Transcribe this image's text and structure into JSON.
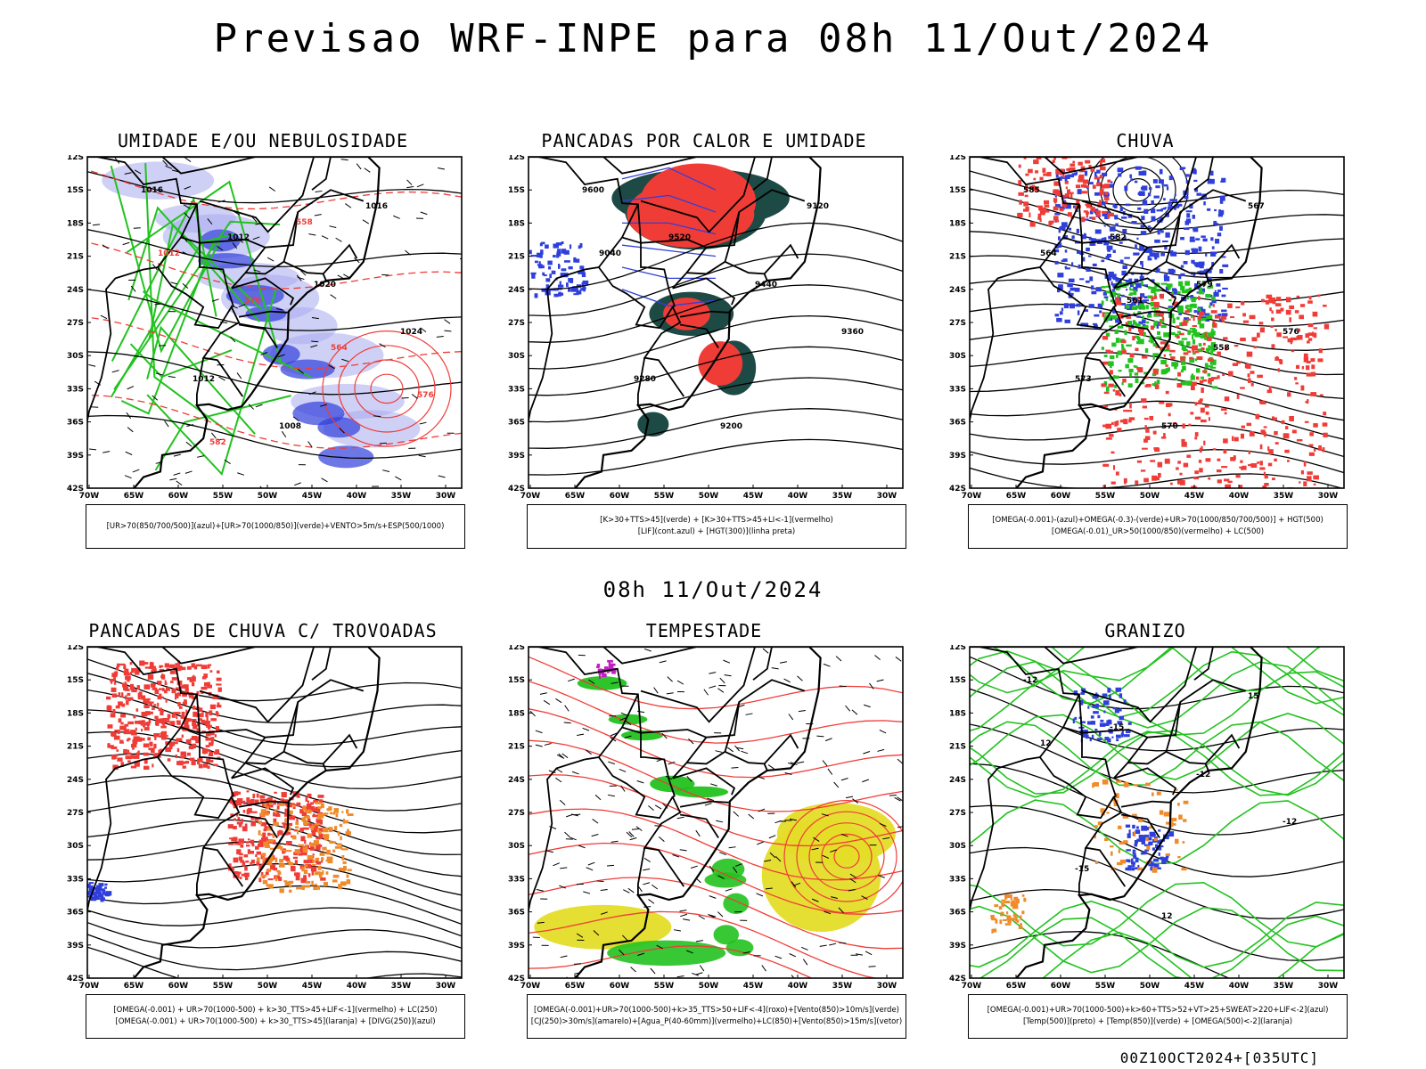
{
  "header": {
    "title": "Previsao WRF-INPE  para 08h 11/Out/2024",
    "mid_title": "08h 11/Out/2024",
    "footer": "00Z10OCT2024+[035UTC]"
  },
  "axes": {
    "lat_labels": [
      "12S",
      "15S",
      "18S",
      "21S",
      "24S",
      "27S",
      "30S",
      "33S",
      "36S",
      "39S",
      "42S"
    ],
    "lon_labels": [
      "70W",
      "65W",
      "60W",
      "55W",
      "50W",
      "45W",
      "40W",
      "35W",
      "30W"
    ]
  },
  "panels": [
    {
      "id": "umidade",
      "title": "UMIDADE E/OU NEBULOSIDADE",
      "caption": [
        "[UR>70(850/700/500)](azul)+[UR>70(1000/850)](verde)+VENTO>5m/s+ESP(500/1000)"
      ],
      "contour_labels": [
        "1016",
        "1012",
        "1020",
        "1024",
        "1012",
        "1008",
        "1016",
        "1012",
        "570",
        "564",
        "576",
        "582",
        "558"
      ]
    },
    {
      "id": "pancadas-calor",
      "title": "PANCADAS POR CALOR E UMIDADE",
      "caption": [
        "[K>30+TTS>45](verde) + [K>30+TTS>45+LI<-1](vermelho)",
        "[LIF](cont.azul) + [HGT(300)](linha preta)"
      ],
      "contour_labels": [
        "9600",
        "9520",
        "9440",
        "9360",
        "9280",
        "9200",
        "9120",
        "9040"
      ]
    },
    {
      "id": "chuva",
      "title": "CHUVA",
      "caption": [
        "[OMEGA(-0.001)-(azul)+OMEGA(-0.3)-(verde)+UR>70(1000/850/700/500)] + HGT(500)",
        "[OMEGA(-0.01)_UR>50(1000/850)(vermelho) + LC(500)"
      ],
      "contour_labels": [
        "585",
        "582",
        "579",
        "576",
        "573",
        "570",
        "567",
        "564",
        "561",
        "558"
      ]
    },
    {
      "id": "pancadas-trovoadas",
      "title": "PANCADAS DE CHUVA C/ TROVOADAS",
      "caption": [
        "[OMEGA(-0.001) + UR>70(1000-500) + k>30_TTS>45+LIF<-1](vermelho) + LC(250)",
        "[OMEGA(-0.001) + UR>70(1000-500) + k>30_TTS>45](laranja) + [DIVG(250)](azul)"
      ],
      "contour_labels": []
    },
    {
      "id": "tempestade",
      "title": "TEMPESTADE",
      "caption": [
        "[OMEGA(-0.001)+UR>70(1000-500)+k>35_TTS>50+LIF<-4](roxo)+[Vento(850)>10m/s](verde)",
        "[CJ(250)>30m/s](amarelo)+[Agua_P(40-60mm)](vermelho)+LC(850)+[Vento(850)>15m/s](vetor)"
      ],
      "contour_labels": []
    },
    {
      "id": "granizo",
      "title": "GRANIZO",
      "caption": [
        "[OMEGA(-0.001)+UR>70(1000-500)+k>60+TTS>52+VT>25+SWEAT>220+LIF<-2](azul)",
        "[Temp(500)](preto) + [Temp(850)](verde) + [OMEGA(500)<-2](laranja)"
      ],
      "contour_labels": [
        "-12",
        "-15",
        "-12",
        "-12",
        "-15",
        "12",
        "15",
        "12"
      ]
    }
  ],
  "colors": {
    "blue": "#2f3fdc",
    "light_blue": "#a7a9ee",
    "green": "#22c21f",
    "red": "#f03c37",
    "dark_teal": "#1e4a45",
    "orange": "#f08a2a",
    "yellow": "#e4dd28",
    "magenta": "#c020c0"
  }
}
